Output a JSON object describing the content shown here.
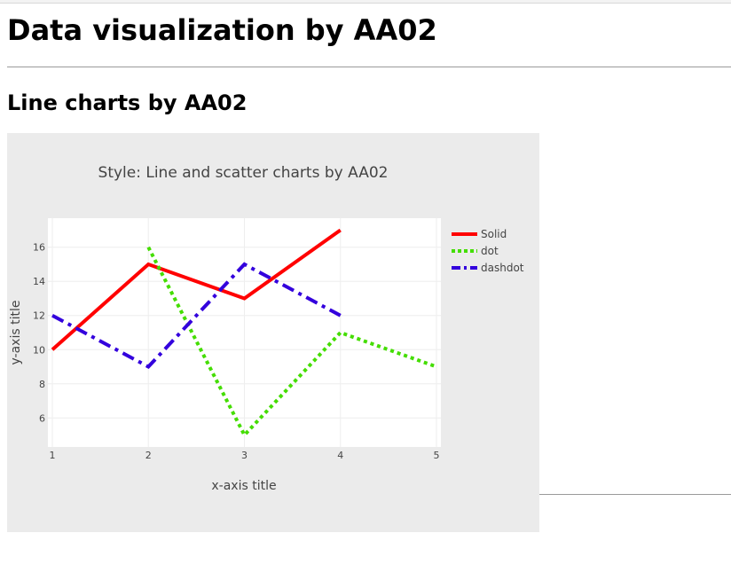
{
  "page": {
    "title": "Data visualization by AA02",
    "subtitle": "Line charts by AA02"
  },
  "chart_data": {
    "type": "line",
    "title": "Style: Line and scatter charts by AA02",
    "xlabel": "x-axis title",
    "ylabel": "y-axis title",
    "xlim": [
      1,
      5
    ],
    "ylim": [
      4.3,
      17.7
    ],
    "xticks": [
      1,
      2,
      3,
      4,
      5
    ],
    "yticks": [
      6,
      8,
      10,
      12,
      14,
      16
    ],
    "grid": true,
    "legend_position": "top-right",
    "series": [
      {
        "name": "Solid",
        "x": [
          1,
          2,
          3,
          4
        ],
        "y": [
          10,
          15,
          13,
          17
        ],
        "color": "#ff0000",
        "dash": "solid"
      },
      {
        "name": "dot",
        "x": [
          2,
          3,
          4,
          5
        ],
        "y": [
          16,
          5,
          11,
          9
        ],
        "color": "#44dd00",
        "dash": "dot"
      },
      {
        "name": "dashdot",
        "x": [
          1,
          2,
          3,
          4
        ],
        "y": [
          12,
          9,
          15,
          12
        ],
        "color": "#3300dd",
        "dash": "dashdot"
      }
    ]
  }
}
